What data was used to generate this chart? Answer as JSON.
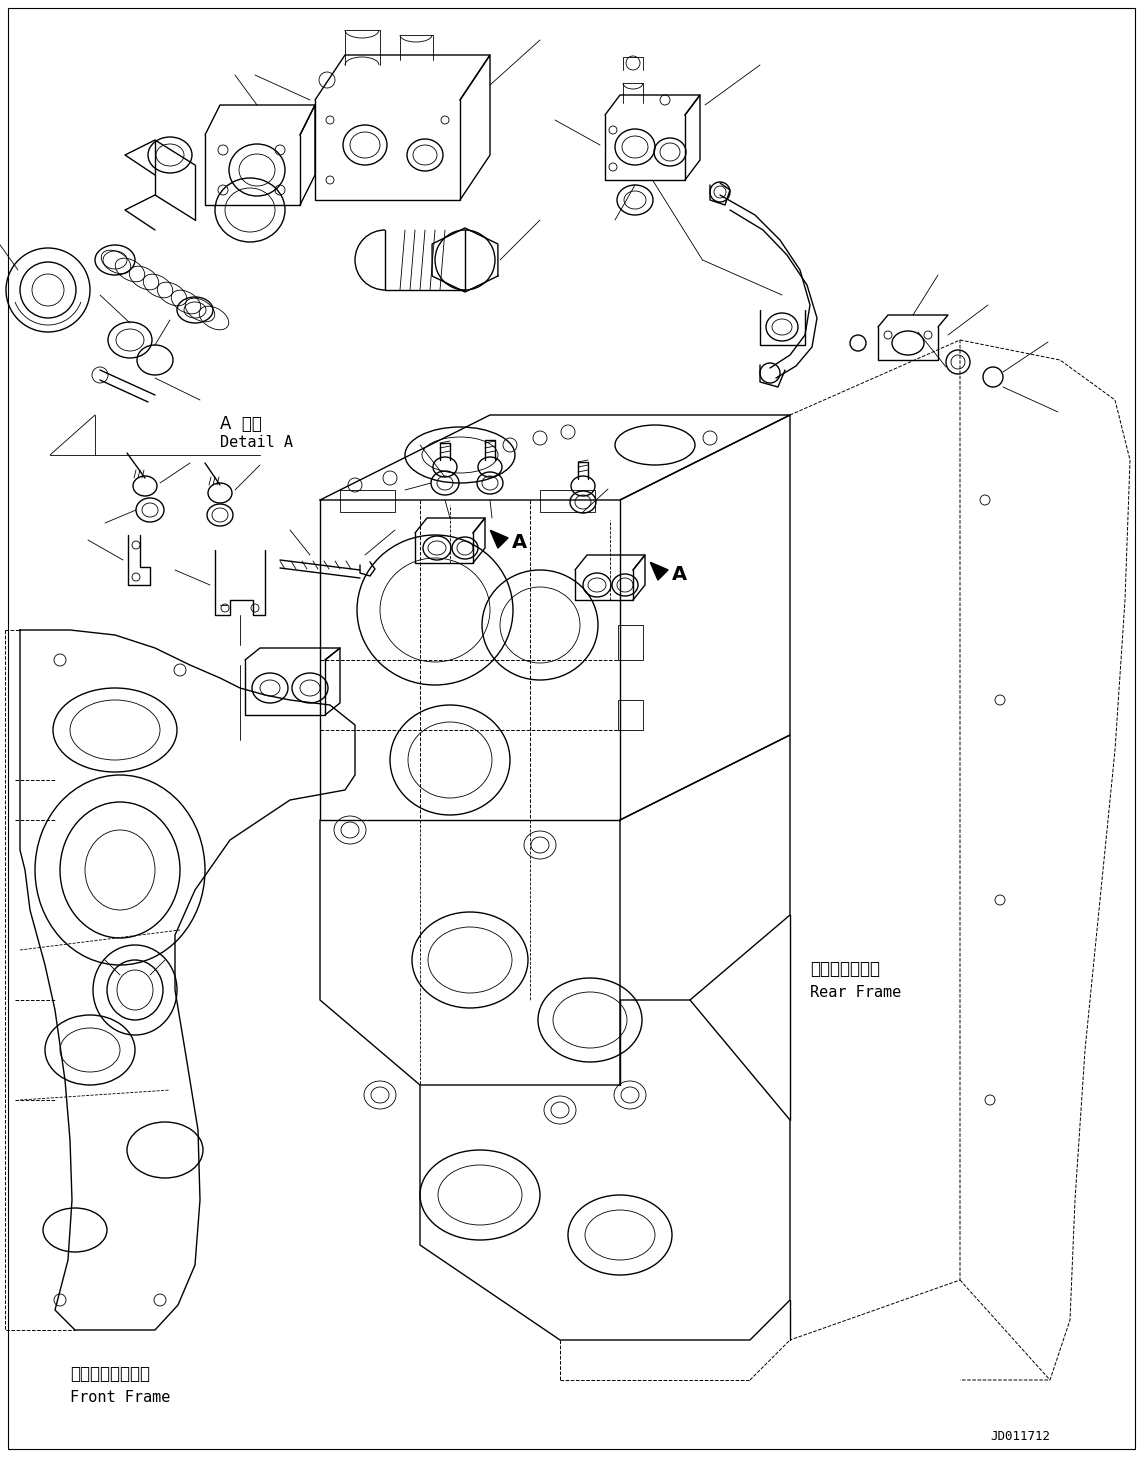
{
  "bg_color": "#ffffff",
  "fig_width": 11.43,
  "fig_height": 14.57,
  "dpi": 100,
  "labels": {
    "detail_a_jp": "A 詳細",
    "detail_a_en": "Detail A",
    "front_frame_jp": "フロントフレーム",
    "front_frame_en": "Front Frame",
    "rear_frame_jp": "リヤーフレーム",
    "rear_frame_en": "Rear Frame",
    "label_A1": "A",
    "label_A2": "A",
    "drawing_no": "JD011712"
  },
  "line_color": "#000000",
  "lw": 1.0,
  "tlw": 0.6,
  "dlw": 0.7
}
